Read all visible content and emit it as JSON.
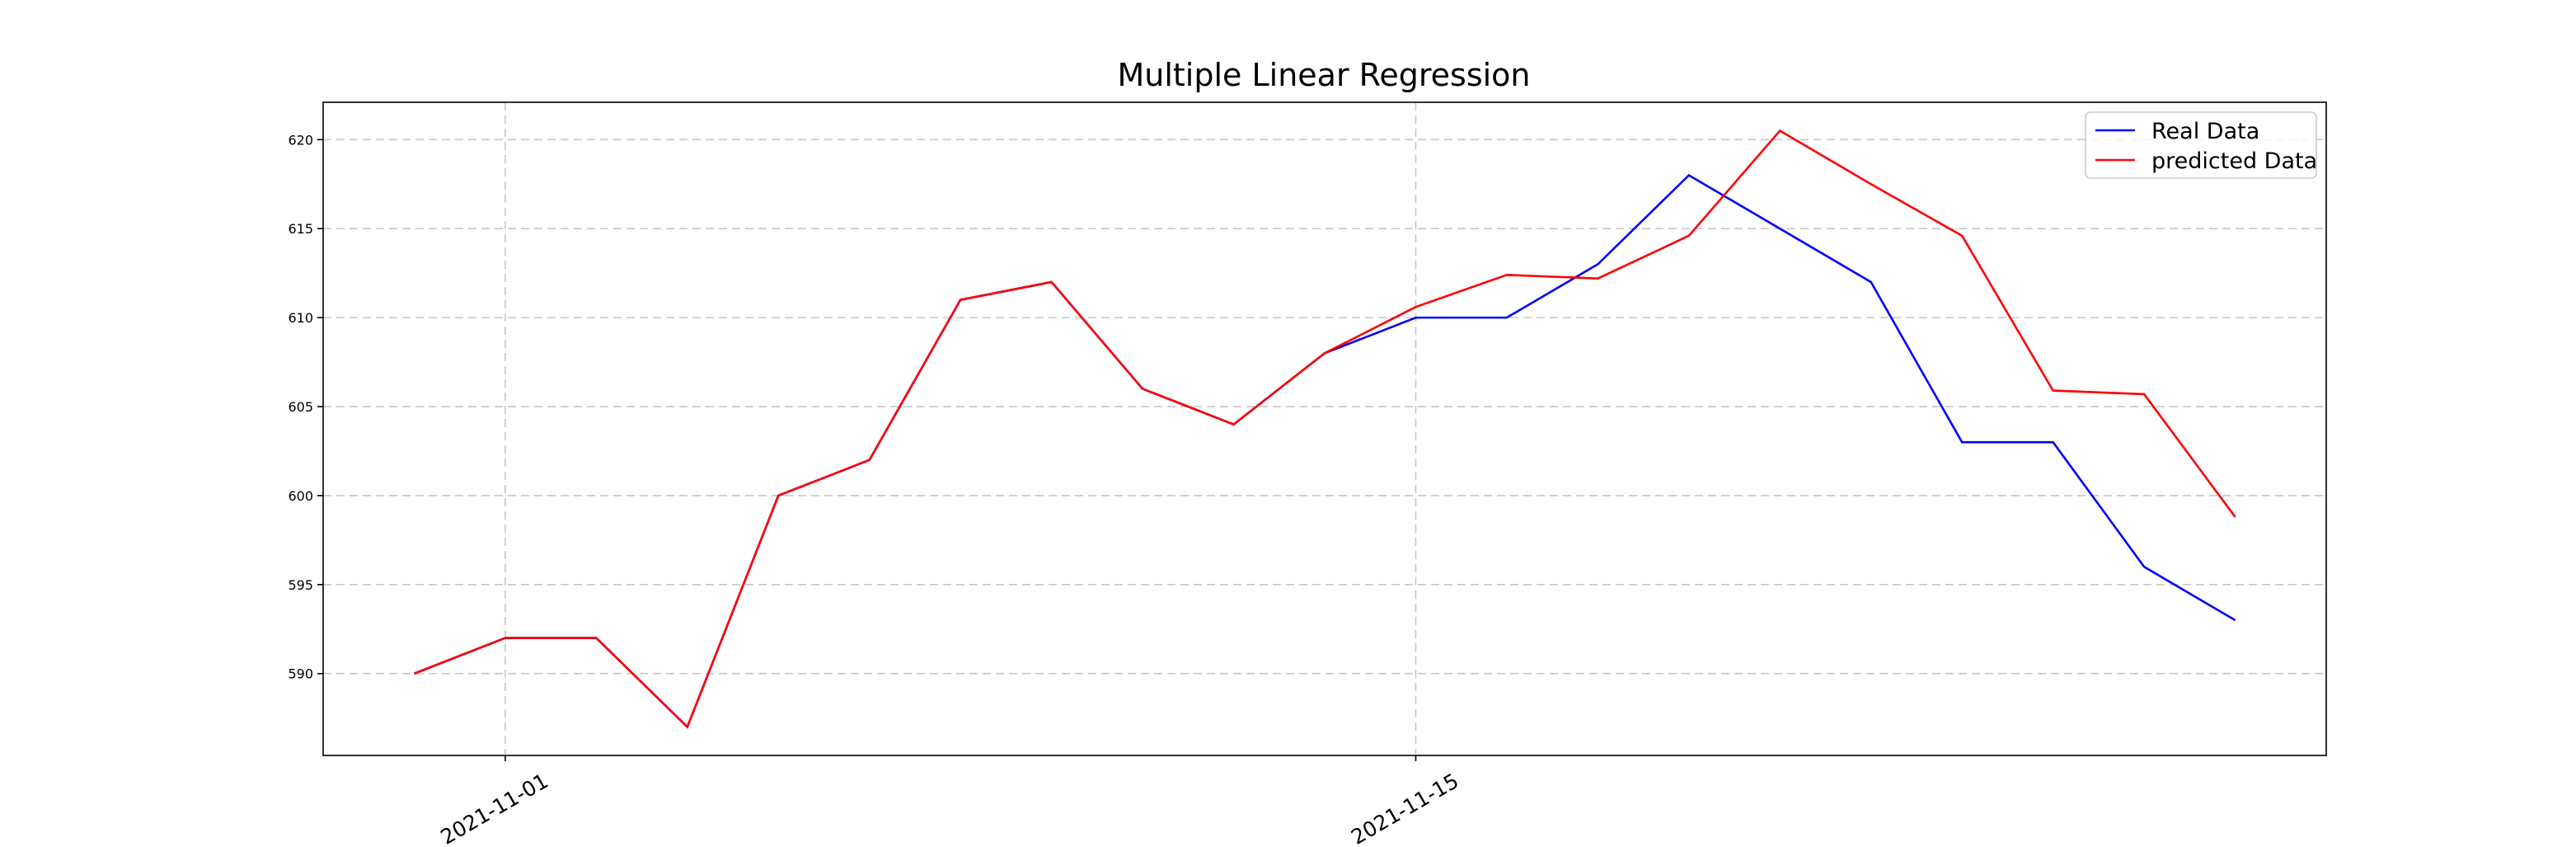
{
  "chart_data": {
    "type": "line",
    "title": "Multiple Linear Regression",
    "categories": [
      null,
      "2021-11-01",
      null,
      null,
      null,
      null,
      null,
      null,
      null,
      null,
      null,
      "2021-11-15",
      null,
      null,
      null,
      null,
      null,
      null,
      null,
      null,
      null
    ],
    "series": [
      {
        "name": "Real Data",
        "color": "#0000ff",
        "values": [
          590,
          592,
          592,
          587,
          600,
          602,
          611,
          612,
          606,
          604,
          608,
          610,
          610,
          613,
          618,
          615,
          612,
          603,
          603,
          596,
          593
        ]
      },
      {
        "name": "predicted Data",
        "color": "#ff0000",
        "values": [
          590,
          592,
          592,
          587,
          600,
          602,
          611,
          612,
          606,
          604,
          608,
          610.6,
          612.4,
          612.2,
          614.6,
          620.5,
          617.5,
          614.6,
          605.9,
          605.7,
          598.8
        ]
      }
    ],
    "ylim": [
      585.4,
      622.1
    ],
    "yticks": [
      590,
      595,
      600,
      605,
      610,
      615,
      620
    ],
    "grid": true,
    "legend": "upper right"
  }
}
